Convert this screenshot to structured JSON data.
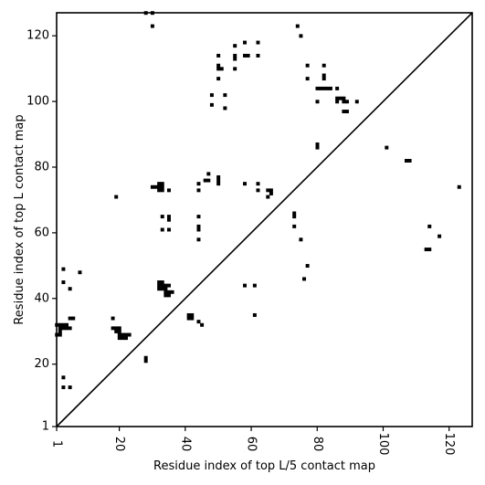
{
  "chart_data": {
    "type": "scatter",
    "title": "",
    "xlabel": "Residue index of top L/5 contact map",
    "ylabel": "Residue index of top L contact map",
    "xlim": [
      1,
      127
    ],
    "ylim": [
      1,
      127
    ],
    "xticks": [
      1,
      20,
      40,
      60,
      80,
      100,
      120
    ],
    "yticks": [
      1,
      20,
      40,
      60,
      80,
      100,
      120
    ],
    "xtick_labels": [
      "1",
      "20",
      "40",
      "60",
      "80",
      "100",
      "120"
    ],
    "ytick_labels": [
      "1",
      "20",
      "40",
      "60",
      "80",
      "100",
      "120"
    ],
    "diagonal": true,
    "grid": false,
    "colors": {
      "points": "#000000",
      "diagonal": "#000000",
      "frame": "#000000"
    },
    "points": [
      [
        28,
        127
      ],
      [
        30,
        127
      ],
      [
        30,
        123
      ],
      [
        74,
        123
      ],
      [
        75,
        120
      ],
      [
        58,
        118
      ],
      [
        62,
        118
      ],
      [
        55,
        117
      ],
      [
        50,
        114
      ],
      [
        55,
        114
      ],
      [
        58,
        114
      ],
      [
        59,
        114
      ],
      [
        62,
        114
      ],
      [
        55,
        113
      ],
      [
        50,
        111
      ],
      [
        51,
        110
      ],
      [
        50,
        110
      ],
      [
        55,
        110
      ],
      [
        77,
        111
      ],
      [
        82,
        111
      ],
      [
        77,
        107
      ],
      [
        82,
        108
      ],
      [
        82,
        107
      ],
      [
        50,
        107
      ],
      [
        48,
        102
      ],
      [
        52,
        102
      ],
      [
        48,
        99
      ],
      [
        52,
        98
      ],
      [
        80,
        104
      ],
      [
        81,
        104
      ],
      [
        82,
        104
      ],
      [
        83,
        104
      ],
      [
        84,
        104
      ],
      [
        86,
        104
      ],
      [
        80,
        100
      ],
      [
        86,
        101
      ],
      [
        87,
        101
      ],
      [
        88,
        101
      ],
      [
        86,
        100
      ],
      [
        88,
        100
      ],
      [
        89,
        100
      ],
      [
        92,
        100
      ],
      [
        88,
        97
      ],
      [
        89,
        97
      ],
      [
        80,
        87
      ],
      [
        80,
        86
      ],
      [
        101,
        86
      ],
      [
        107,
        82
      ],
      [
        108,
        82
      ],
      [
        123,
        74
      ],
      [
        19,
        71
      ],
      [
        30,
        74
      ],
      [
        31,
        74
      ],
      [
        32,
        74
      ],
      [
        33,
        74
      ],
      [
        32,
        75
      ],
      [
        33,
        75
      ],
      [
        32,
        73
      ],
      [
        33,
        73
      ],
      [
        35,
        73
      ],
      [
        44,
        75
      ],
      [
        44,
        73
      ],
      [
        46,
        76
      ],
      [
        47,
        76
      ],
      [
        47,
        78
      ],
      [
        50,
        77
      ],
      [
        50,
        76
      ],
      [
        50,
        75
      ],
      [
        58,
        75
      ],
      [
        62,
        75
      ],
      [
        62,
        73
      ],
      [
        65,
        73
      ],
      [
        65,
        71
      ],
      [
        66,
        73
      ],
      [
        66,
        72
      ],
      [
        33,
        65
      ],
      [
        35,
        65
      ],
      [
        35,
        64
      ],
      [
        33,
        61
      ],
      [
        35,
        61
      ],
      [
        44,
        65
      ],
      [
        44,
        62
      ],
      [
        44,
        61
      ],
      [
        44,
        58
      ],
      [
        73,
        66
      ],
      [
        73,
        65
      ],
      [
        73,
        62
      ],
      [
        75,
        58
      ],
      [
        114,
        62
      ],
      [
        113,
        55
      ],
      [
        114,
        55
      ],
      [
        117,
        59
      ],
      [
        77,
        50
      ],
      [
        76,
        46
      ],
      [
        3,
        49
      ],
      [
        8,
        48
      ],
      [
        3,
        45
      ],
      [
        5,
        43
      ],
      [
        32,
        45
      ],
      [
        33,
        45
      ],
      [
        34,
        44
      ],
      [
        35,
        44
      ],
      [
        32,
        44
      ],
      [
        33,
        44
      ],
      [
        32,
        43
      ],
      [
        33,
        43
      ],
      [
        34,
        43
      ],
      [
        34,
        42
      ],
      [
        35,
        42
      ],
      [
        36,
        42
      ],
      [
        34,
        41
      ],
      [
        35,
        41
      ],
      [
        58,
        44
      ],
      [
        61,
        44
      ],
      [
        61,
        35
      ],
      [
        41,
        35
      ],
      [
        42,
        35
      ],
      [
        41,
        34
      ],
      [
        42,
        34
      ],
      [
        44,
        33
      ],
      [
        45,
        32
      ],
      [
        18,
        34
      ],
      [
        5,
        34
      ],
      [
        6,
        34
      ],
      [
        1,
        32
      ],
      [
        2,
        32
      ],
      [
        3,
        32
      ],
      [
        4,
        32
      ],
      [
        2,
        31
      ],
      [
        3,
        31
      ],
      [
        4,
        31
      ],
      [
        5,
        31
      ],
      [
        2,
        30
      ],
      [
        1,
        29
      ],
      [
        2,
        29
      ],
      [
        18,
        31
      ],
      [
        19,
        31
      ],
      [
        20,
        31
      ],
      [
        19,
        30
      ],
      [
        20,
        30
      ],
      [
        20,
        29
      ],
      [
        21,
        29
      ],
      [
        22,
        29
      ],
      [
        23,
        29
      ],
      [
        20,
        28
      ],
      [
        21,
        28
      ],
      [
        22,
        28
      ],
      [
        28,
        22
      ],
      [
        28,
        21
      ],
      [
        3,
        16
      ],
      [
        3,
        13
      ],
      [
        5,
        13
      ]
    ]
  }
}
